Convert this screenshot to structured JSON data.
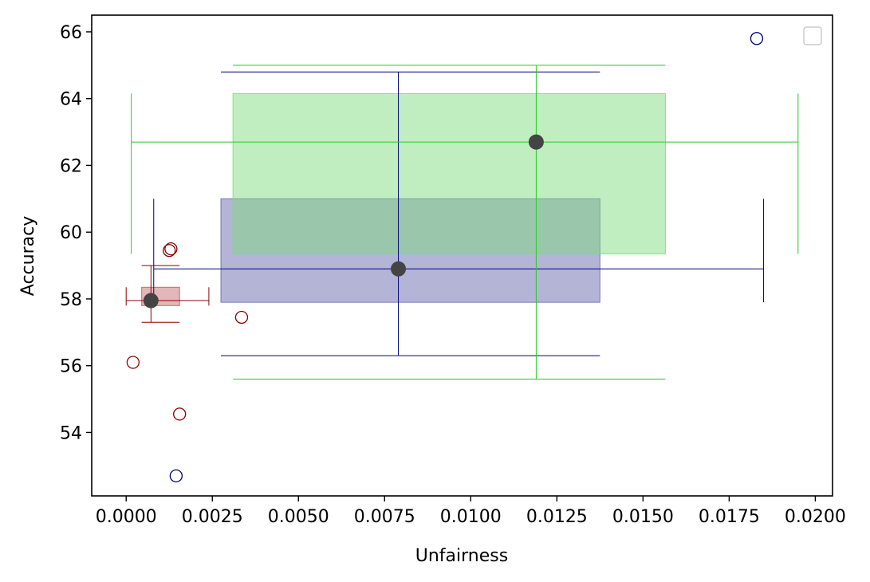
{
  "chart_data": {
    "type": "scatter",
    "title": "",
    "xlabel": "Unfairness",
    "ylabel": "Accuracy",
    "xlim": [
      -0.001,
      0.0205
    ],
    "ylim": [
      52.1,
      66.5
    ],
    "x_ticks": [
      0.0,
      0.0025,
      0.005,
      0.0075,
      0.01,
      0.0125,
      0.015,
      0.0175,
      0.02
    ],
    "x_tick_labels": [
      "0.0000",
      "0.0025",
      "0.0050",
      "0.0075",
      "0.0100",
      "0.0125",
      "0.0150",
      "0.0175",
      "0.0200"
    ],
    "y_ticks": [
      54,
      56,
      58,
      60,
      62,
      64,
      66
    ],
    "y_tick_labels": [
      "54",
      "56",
      "58",
      "60",
      "62",
      "64",
      "66"
    ],
    "grid": false,
    "legend": {
      "placement": "top-right",
      "entries": []
    },
    "groups": [
      {
        "color": "#8b0000",
        "box_fill": "#c06060",
        "box_opacity": 0.45,
        "median": {
          "x": 0.00072,
          "y": 57.95
        },
        "box": {
          "x": [
            0.00045,
            0.00155
          ],
          "y": [
            57.8,
            58.35
          ]
        },
        "whisker_x": [
          0.0,
          0.0024
        ],
        "whisker_y": [
          57.3,
          59.0
        ],
        "outliers": [
          {
            "x": 0.00125,
            "y": 59.45
          },
          {
            "x": 0.0013,
            "y": 59.5
          },
          {
            "x": 0.00335,
            "y": 57.45
          },
          {
            "x": 0.0002,
            "y": 56.1
          },
          {
            "x": 0.00155,
            "y": 54.55
          }
        ]
      },
      {
        "color": "#00007f",
        "box_fill": "#6a6ab0",
        "box_opacity": 0.5,
        "median": {
          "x": 0.0079,
          "y": 58.9
        },
        "box": {
          "x": [
            0.00275,
            0.01375
          ],
          "y": [
            57.9,
            61.0
          ]
        },
        "whisker_x": [
          0.0008,
          0.0185
        ],
        "whisker_y": [
          56.3,
          64.8
        ],
        "outliers": [
          {
            "x": 0.0183,
            "y": 65.8
          },
          {
            "x": 0.00145,
            "y": 52.7
          }
        ]
      },
      {
        "color": "#22cc22",
        "box_fill": "#7ddc7d",
        "box_opacity": 0.48,
        "median": {
          "x": 0.0119,
          "y": 62.7
        },
        "box": {
          "x": [
            0.0031,
            0.01565
          ],
          "y": [
            59.35,
            64.15
          ]
        },
        "whisker_x": [
          0.00015,
          0.0195
        ],
        "whisker_y": [
          55.6,
          65.0
        ],
        "outliers": []
      }
    ]
  }
}
